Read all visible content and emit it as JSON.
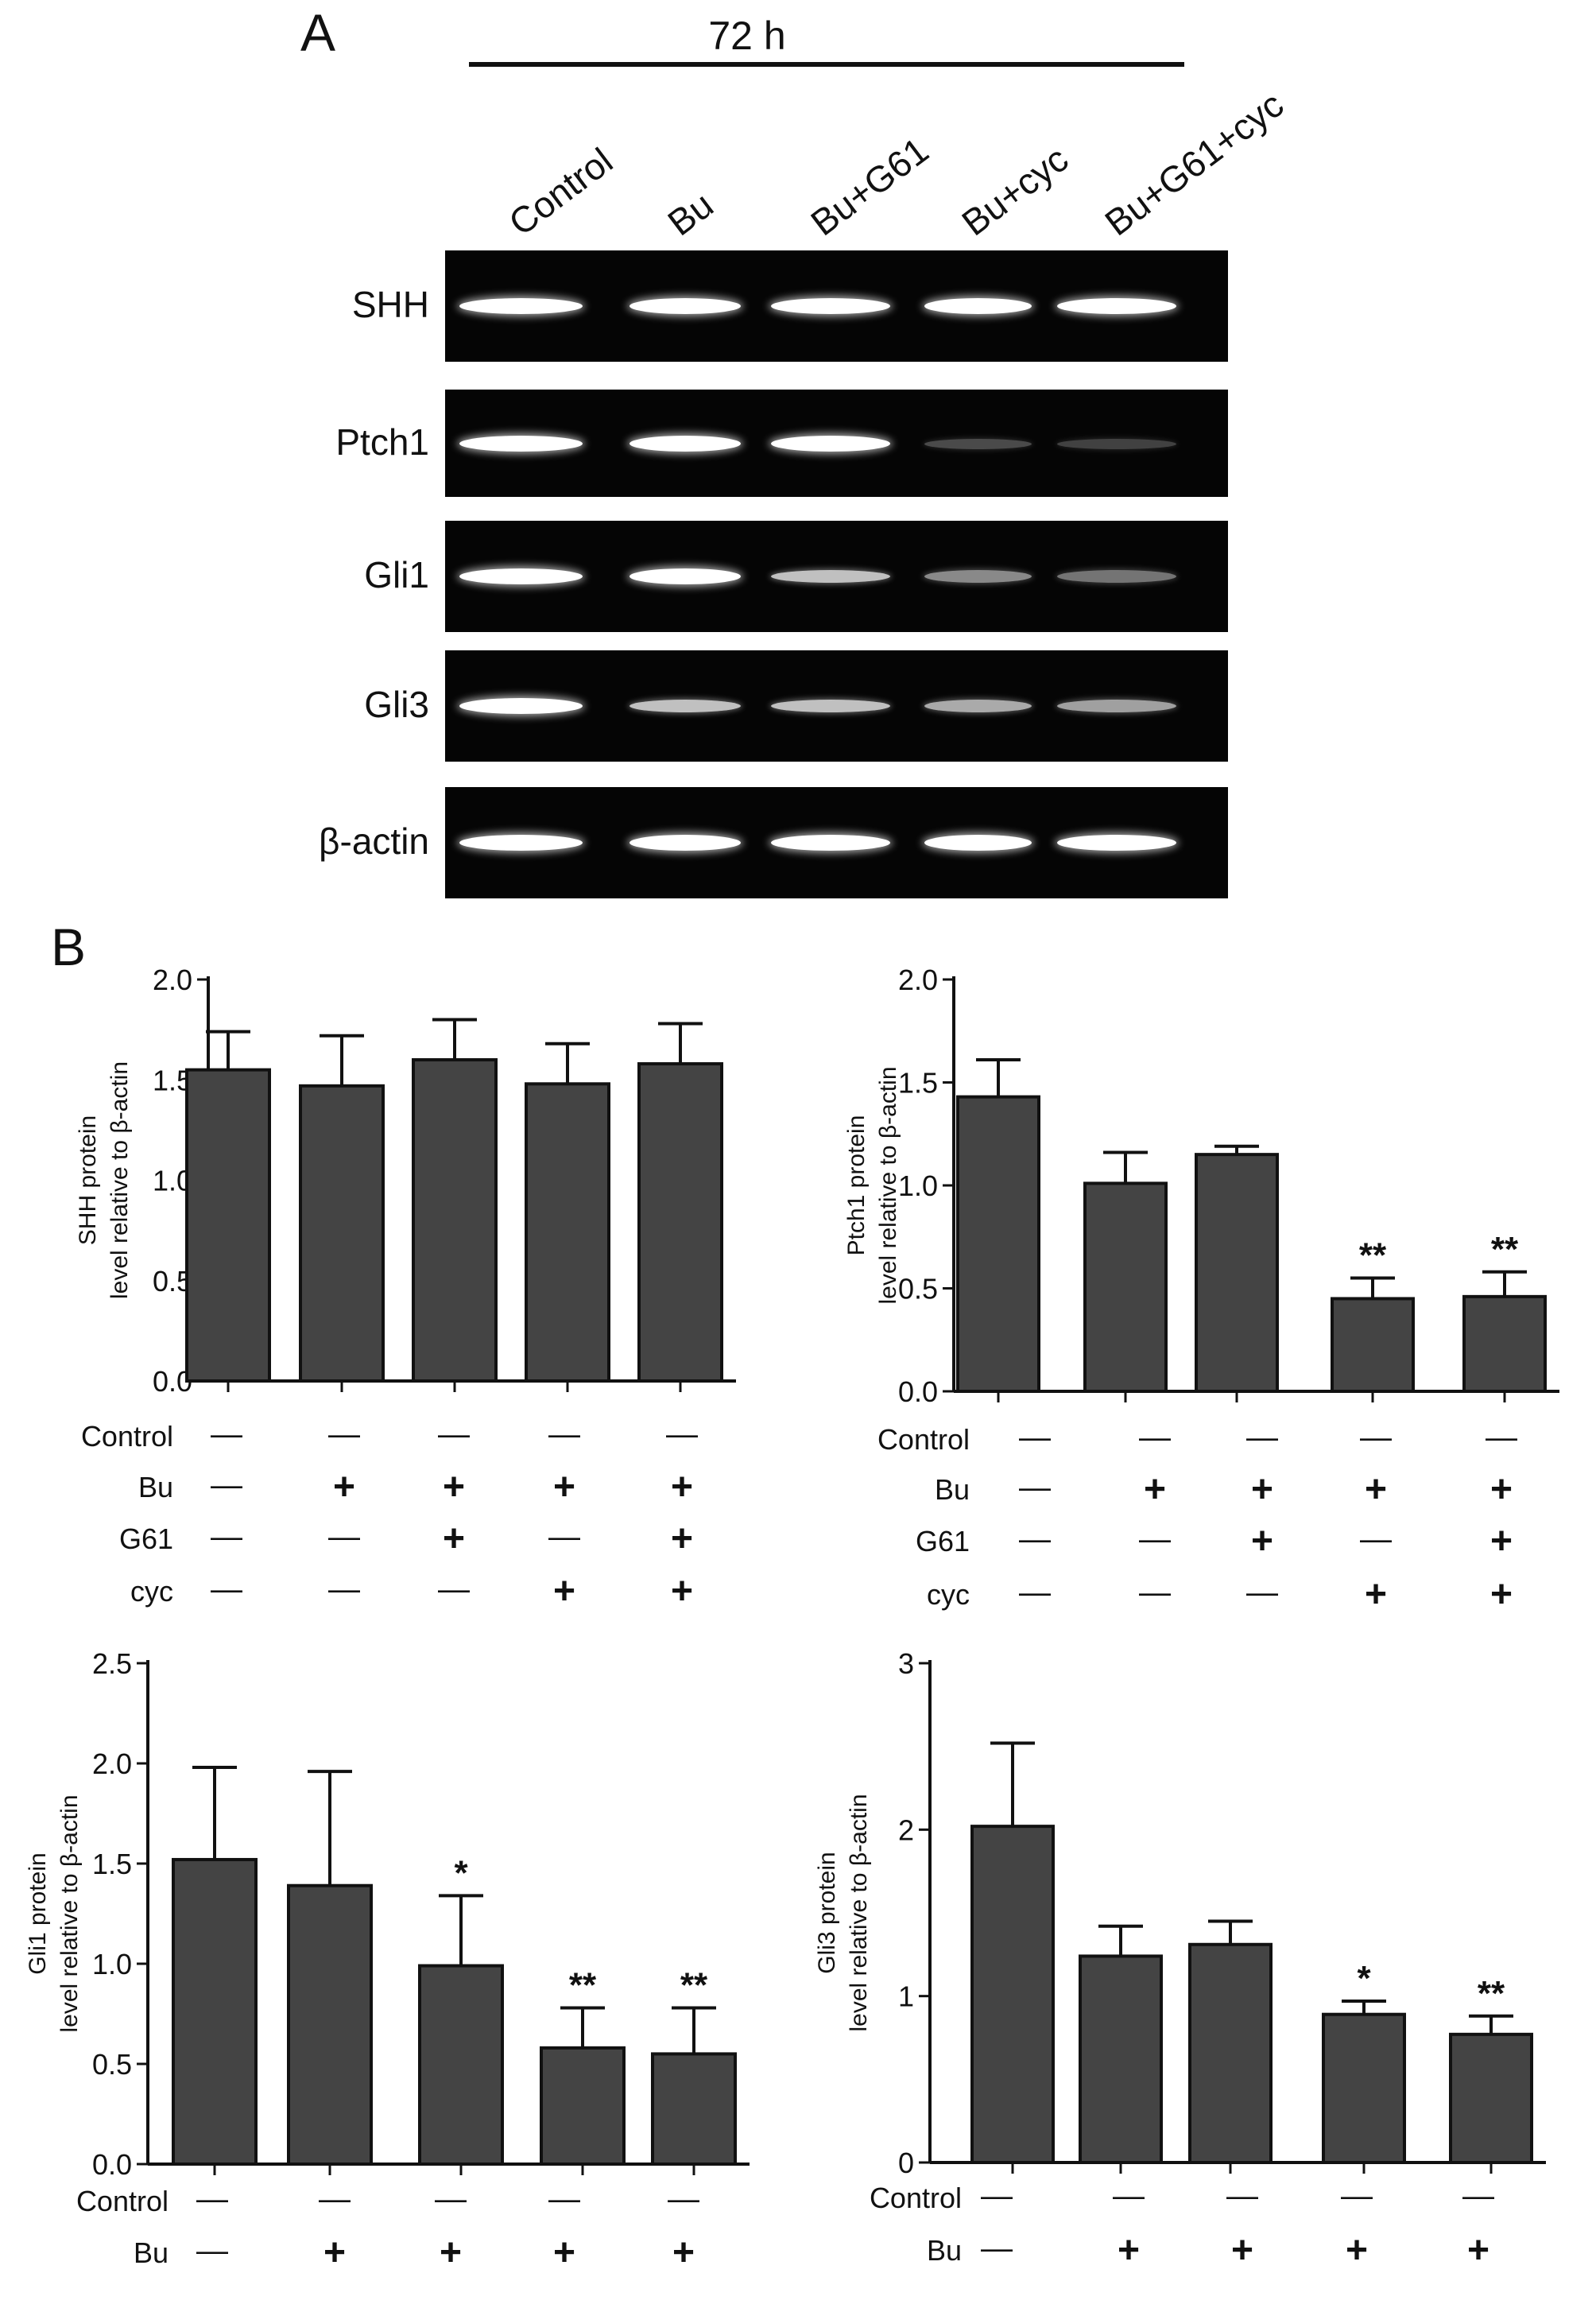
{
  "panel_a": {
    "letter": "A",
    "timepoint": "72 h",
    "lanes": [
      "Control",
      "Bu",
      "Bu+G61",
      "Bu+cyc",
      "Bu+G61+cyc"
    ],
    "blots": [
      {
        "label": "SHH",
        "intensity": [
          1.0,
          1.0,
          1.0,
          1.0,
          1.0
        ]
      },
      {
        "label": "Ptch1",
        "intensity": [
          1.0,
          1.0,
          1.0,
          0.4,
          0.35
        ]
      },
      {
        "label": "Gli1",
        "intensity": [
          1.0,
          1.0,
          0.85,
          0.6,
          0.5
        ]
      },
      {
        "label": "Gli3",
        "intensity": [
          1.0,
          0.85,
          0.85,
          0.75,
          0.7
        ]
      },
      {
        "label": "β-actin",
        "intensity": [
          1.0,
          1.0,
          1.0,
          1.0,
          1.0
        ]
      }
    ]
  },
  "panel_b": {
    "letter": "B"
  },
  "treatment_rows": {
    "labels": [
      "Control",
      "Bu",
      "G61",
      "cyc"
    ],
    "Control": [
      "—",
      "—",
      "—",
      "—",
      "—"
    ],
    "Bu": [
      "—",
      "+",
      "+",
      "+",
      "+"
    ],
    "G61": [
      "—",
      "—",
      "+",
      "—",
      "+"
    ],
    "cyc": [
      "—",
      "—",
      "—",
      "+",
      "+"
    ]
  },
  "chart_data": [
    {
      "type": "bar",
      "ylabel": [
        "SHH protein",
        "level relative to β-actin"
      ],
      "ylim": [
        0,
        2.0
      ],
      "yticks": [
        "0.0",
        "0.5",
        "1.0",
        "1.5",
        "2.0"
      ],
      "ytick_values": [
        0,
        0.5,
        1.0,
        1.5,
        2.0
      ],
      "categories": [
        "Control",
        "Bu",
        "Bu+G61",
        "Bu+cyc",
        "Bu+G61+cyc"
      ],
      "values": [
        1.55,
        1.47,
        1.6,
        1.48,
        1.58
      ],
      "errors": [
        0.19,
        0.25,
        0.2,
        0.2,
        0.2
      ],
      "significance": [
        "",
        "",
        "",
        "",
        ""
      ]
    },
    {
      "type": "bar",
      "ylabel": [
        "Ptch1 protein",
        "level relative to β-actin"
      ],
      "ylim": [
        0,
        2.0
      ],
      "yticks": [
        "0.0",
        "0.5",
        "1.0",
        "1.5",
        "2.0"
      ],
      "ytick_values": [
        0,
        0.5,
        1.0,
        1.5,
        2.0
      ],
      "categories": [
        "Control",
        "Bu",
        "Bu+G61",
        "Bu+cyc",
        "Bu+G61+cyc"
      ],
      "values": [
        1.43,
        1.01,
        1.15,
        0.45,
        0.46
      ],
      "errors": [
        0.18,
        0.15,
        0.04,
        0.1,
        0.12
      ],
      "significance": [
        "",
        "",
        "",
        "**",
        "**"
      ]
    },
    {
      "type": "bar",
      "ylabel": [
        "Gli1 protein",
        "level relative to β-actin"
      ],
      "ylim": [
        0,
        2.5
      ],
      "yticks": [
        "0.0",
        "0.5",
        "1.0",
        "1.5",
        "2.0",
        "2.5"
      ],
      "ytick_values": [
        0,
        0.5,
        1.0,
        1.5,
        2.0,
        2.5
      ],
      "categories": [
        "Control",
        "Bu",
        "Bu+G61",
        "Bu+cyc",
        "Bu+G61+cyc"
      ],
      "values": [
        1.52,
        1.39,
        0.99,
        0.58,
        0.55
      ],
      "errors": [
        0.46,
        0.57,
        0.35,
        0.2,
        0.23
      ],
      "significance": [
        "",
        "",
        "*",
        "**",
        "**"
      ]
    },
    {
      "type": "bar",
      "ylabel": [
        "Gli3 protein",
        "level relative to  β-actin"
      ],
      "ylim": [
        0,
        3
      ],
      "yticks": [
        "0",
        "1",
        "2",
        "3"
      ],
      "ytick_values": [
        0,
        1,
        2,
        3
      ],
      "categories": [
        "Control",
        "Bu",
        "Bu+G61",
        "Bu+cyc",
        "Bu+G61+cyc"
      ],
      "values": [
        2.02,
        1.24,
        1.31,
        0.89,
        0.77
      ],
      "errors": [
        0.5,
        0.18,
        0.14,
        0.08,
        0.11
      ],
      "significance": [
        "",
        "",
        "",
        "*",
        "**"
      ]
    }
  ]
}
